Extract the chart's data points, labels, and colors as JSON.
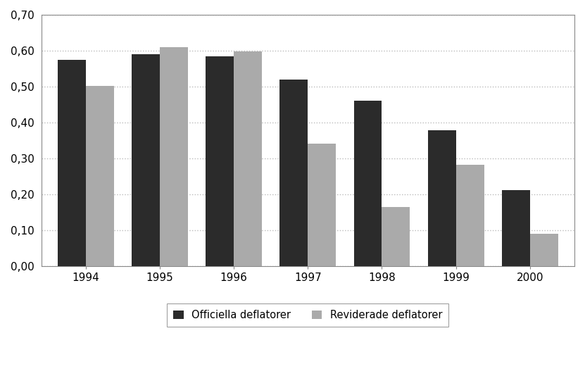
{
  "years": [
    "1994",
    "1995",
    "1996",
    "1997",
    "1998",
    "1999",
    "2000"
  ],
  "officiella": [
    0.575,
    0.59,
    0.585,
    0.52,
    0.46,
    0.378,
    0.212
  ],
  "reviderade": [
    0.502,
    0.61,
    0.598,
    0.34,
    0.165,
    0.282,
    0.09
  ],
  "bar_color_official": "#2b2b2b",
  "bar_color_revised": "#aaaaaa",
  "legend_official": "Officiella deflatorer",
  "legend_revised": "Reviderade deflatorer",
  "ylim": [
    0.0,
    0.7
  ],
  "yticks": [
    0.0,
    0.1,
    0.2,
    0.3,
    0.4,
    0.5,
    0.6,
    0.7
  ],
  "background_color": "#ffffff",
  "bar_width": 0.38,
  "grid_color": "#bbbbbb",
  "spine_color": "#888888"
}
